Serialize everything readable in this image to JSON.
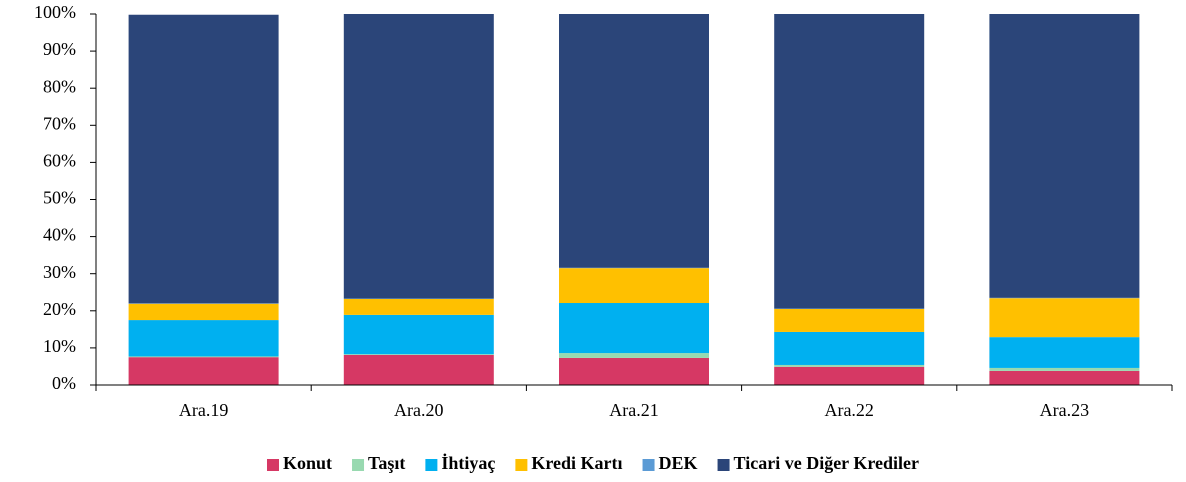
{
  "chart_data": {
    "type": "stacked_bar",
    "categories": [
      "Ara.19",
      "Ara.20",
      "Ara.21",
      "Ara.22",
      "Ara.23"
    ],
    "series": [
      {
        "name": "Konut",
        "color": "#d63864",
        "values": [
          7.5,
          8.1,
          7.3,
          4.9,
          3.8
        ]
      },
      {
        "name": "Taşıt",
        "color": "#98d9b0",
        "values": [
          0.2,
          0.2,
          1.3,
          0.5,
          0.8
        ]
      },
      {
        "name": "İhtiyaç",
        "color": "#00b0f0",
        "values": [
          9.8,
          10.6,
          13.5,
          8.9,
          8.3
        ]
      },
      {
        "name": "Kredi Kartı",
        "color": "#ffc000",
        "values": [
          4.4,
          4.3,
          9.4,
          6.2,
          10.5
        ]
      },
      {
        "name": "DEK",
        "color": "#5b9bd5",
        "values": [
          0.1,
          0.1,
          0.1,
          0.1,
          0.1
        ]
      },
      {
        "name": "Ticari ve Diğer Krediler",
        "color": "#2b4579",
        "values": [
          77.8,
          76.7,
          68.4,
          79.4,
          76.5
        ]
      }
    ],
    "ylim": [
      0,
      100
    ],
    "yticks": [
      {
        "value": 0,
        "label": "0%"
      },
      {
        "value": 10,
        "label": "10%"
      },
      {
        "value": 20,
        "label": "20%"
      },
      {
        "value": 30,
        "label": "30%"
      },
      {
        "value": 40,
        "label": "40%"
      },
      {
        "value": 50,
        "label": "50%"
      },
      {
        "value": 60,
        "label": "60%"
      },
      {
        "value": 70,
        "label": "70%"
      },
      {
        "value": 80,
        "label": "80%"
      },
      {
        "value": 90,
        "label": "90%"
      },
      {
        "value": 100,
        "label": "100%"
      }
    ],
    "legend": "bottom"
  }
}
